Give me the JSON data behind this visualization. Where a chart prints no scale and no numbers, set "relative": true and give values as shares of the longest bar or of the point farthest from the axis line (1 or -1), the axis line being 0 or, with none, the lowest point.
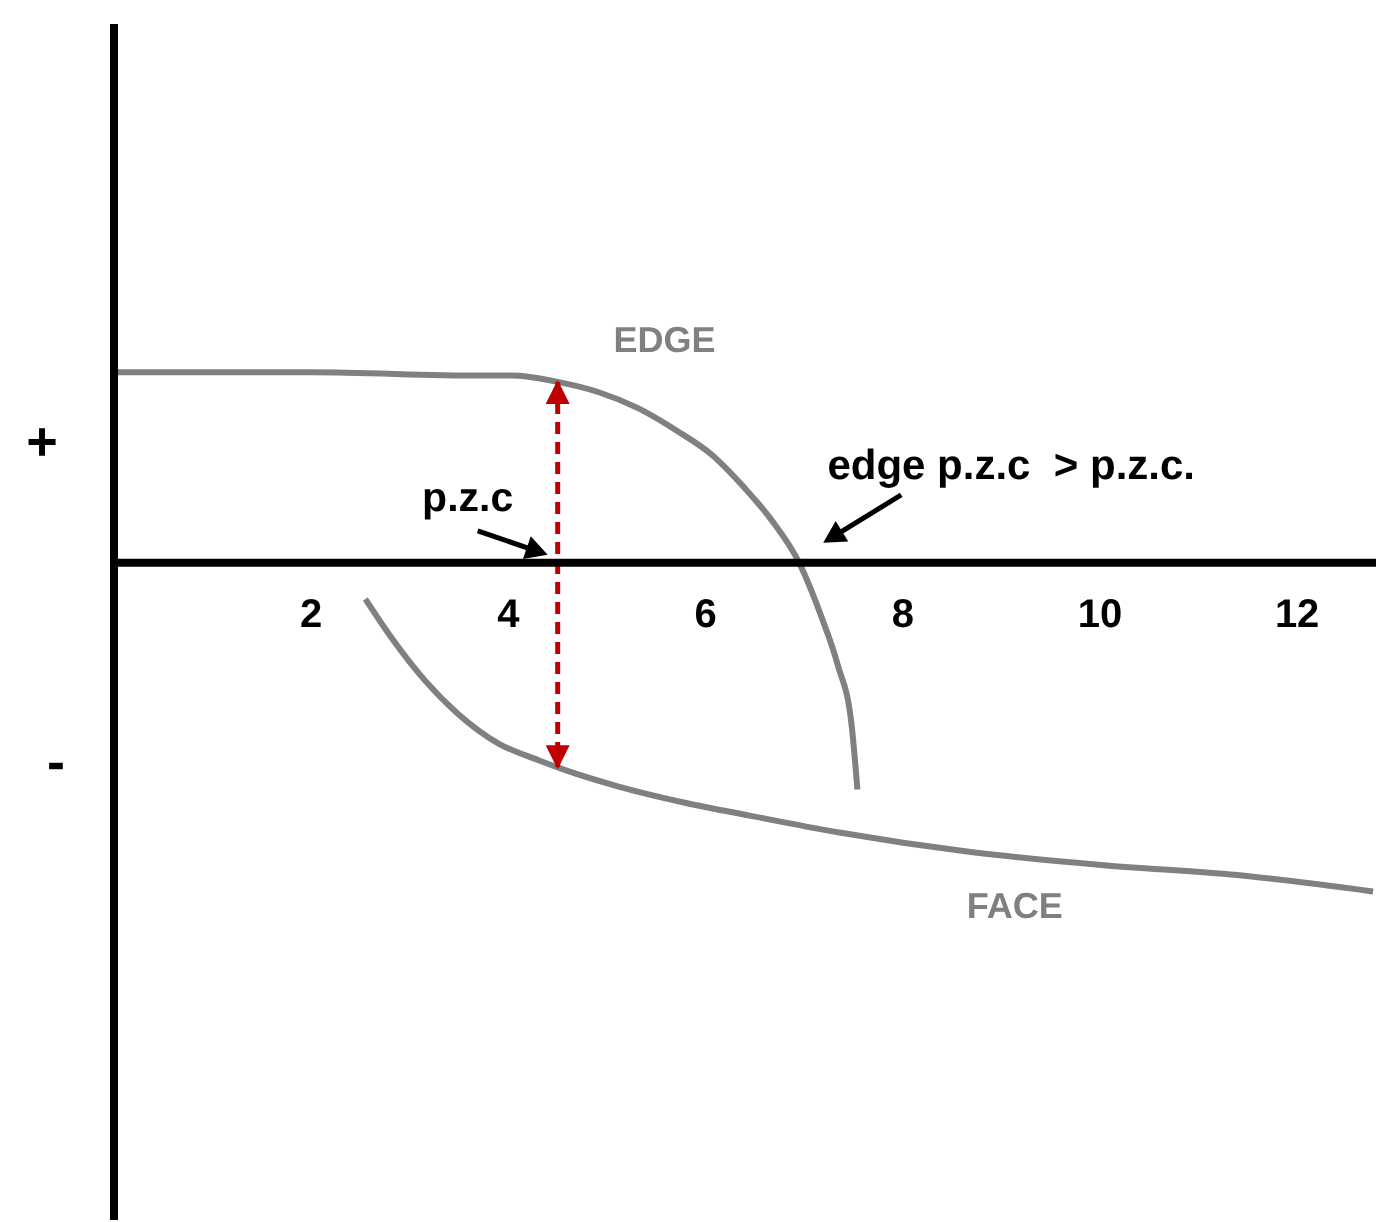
{
  "chart_data": {
    "type": "line",
    "relative": true,
    "marker": "none",
    "line_style": "solid",
    "xlim": [
      0,
      12.8
    ],
    "xticks": [
      2,
      4,
      6,
      8,
      10,
      12
    ],
    "series": [
      {
        "name": "EDGE",
        "color": "#808080",
        "x": [
          0,
          2,
          3.7,
          4.03,
          4.51,
          4.91,
          5.32,
          5.72,
          6.06,
          6.39,
          6.67,
          6.95,
          7.17,
          7.34,
          7.48,
          7.54
        ],
        "values": [
          0.58,
          0.58,
          0.57,
          0.57,
          0.55,
          0.52,
          0.47,
          0.4,
          0.33,
          0.23,
          0.13,
          0.0,
          -0.16,
          -0.31,
          -0.49,
          -0.69
        ]
      },
      {
        "name": "FACE",
        "color": "#808080",
        "x": [
          2.55,
          2.82,
          3.16,
          3.49,
          3.9,
          4.3,
          4.57,
          5.11,
          5.79,
          6.46,
          7.34,
          8.69,
          10.04,
          11.39,
          12.77
        ],
        "values": [
          -0.11,
          -0.23,
          -0.36,
          -0.46,
          -0.55,
          -0.6,
          -0.63,
          -0.68,
          -0.73,
          -0.77,
          -0.82,
          -0.88,
          -0.92,
          -0.95,
          -1.0
        ]
      }
    ],
    "ref_lines": [
      {
        "axis": "x",
        "value": 4.5,
        "label": "p.z.c",
        "color": "#c00000",
        "line_style": "dashed"
      }
    ],
    "annotations": [
      "+",
      "-",
      {
        "text": "edge p.z.c  > p.z.c.",
        "x": 6.95,
        "y": 0
      }
    ]
  }
}
